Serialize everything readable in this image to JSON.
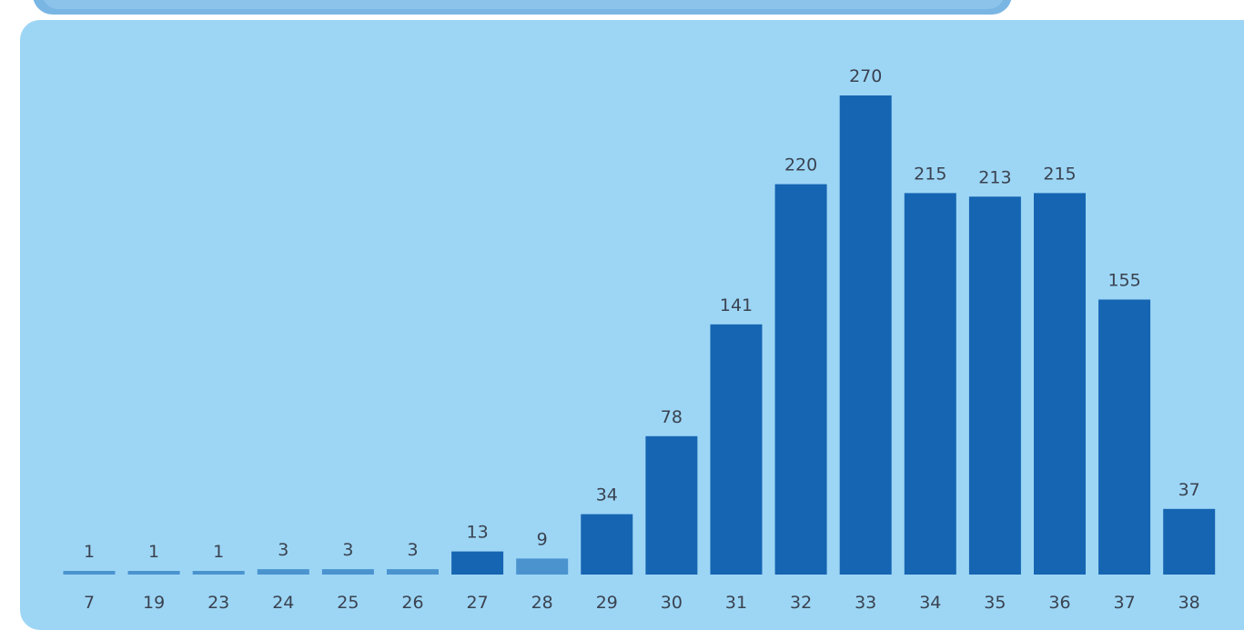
{
  "chart_data": {
    "type": "bar",
    "title": "",
    "xlabel": "",
    "ylabel": "",
    "categories": [
      "7",
      "19",
      "23",
      "24",
      "25",
      "26",
      "27",
      "28",
      "29",
      "30",
      "31",
      "32",
      "33",
      "34",
      "35",
      "36",
      "37",
      "38"
    ],
    "values": [
      1,
      1,
      1,
      3,
      3,
      3,
      13,
      9,
      34,
      78,
      141,
      220,
      270,
      215,
      213,
      215,
      155,
      37
    ],
    "ylim": [
      0,
      270
    ],
    "grid": false,
    "legend": "none",
    "colors": {
      "panel_background": "#9dd6f5",
      "bar_light": "#4a93cf",
      "bar_dark": "#1565b2",
      "text": "#3a4250"
    }
  }
}
